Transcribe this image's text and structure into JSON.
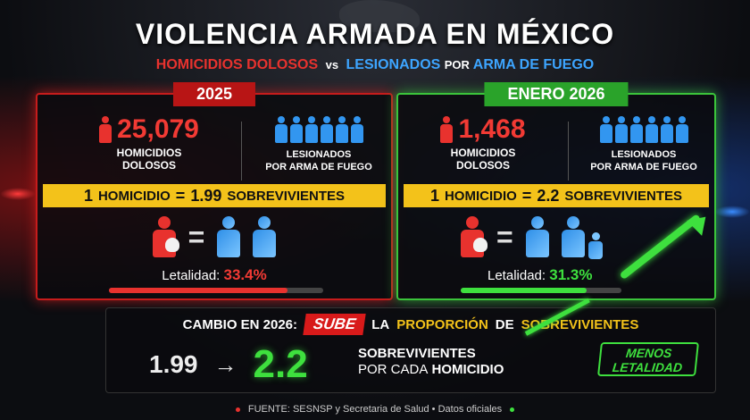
{
  "header": {
    "title": "VIOLENCIA ARMADA EN MÉXICO",
    "subtitle_red": "HOMICIDIOS DOLOSOS",
    "subtitle_vs": "vs",
    "subtitle_blue": "LESIONADOS",
    "subtitle_rest_1": "POR",
    "subtitle_rest_2": "ARMA DE FUEGO"
  },
  "panel_2025": {
    "tag": "2025",
    "homicidios_value": "25,079",
    "homicidios_label_1": "HOMICIDIOS",
    "homicidios_label_2": "DOLOSOS",
    "lesionados_label_1": "LESIONADOS",
    "lesionados_label_2": "POR ARMA DE FUEGO",
    "banner_one": "1",
    "banner_homicidio": "HOMICIDIO",
    "banner_eq": "=",
    "banner_value": "1.99",
    "banner_sobrevivientes": "SOBREVIVIENTES",
    "letalidad_label": "Letalidad:",
    "letalidad_value": "33.4%",
    "letalidad_fraction": 0.334
  },
  "panel_2026": {
    "tag": "ENERO 2026",
    "homicidios_value": "1,468",
    "homicidios_label_1": "HOMICIDIOS",
    "homicidios_label_2": "DOLOSOS",
    "lesionados_label_1": "LESIONADOS",
    "lesionados_label_2": "POR ARMA DE FUEGO",
    "banner_one": "1",
    "banner_homicidio": "HOMICIDIO",
    "banner_eq": "=",
    "banner_value": "2.2",
    "banner_sobrevivientes": "SOBREVIVIENTES",
    "letalidad_label": "Letalidad:",
    "letalidad_value": "31.3%",
    "letalidad_fraction": 0.313
  },
  "equation_sign": "=",
  "change": {
    "prefix": "CAMBIO EN 2026:",
    "badge": "SUBE",
    "text_1": "LA",
    "text_2": "PROPORCIÓN",
    "text_3": "DE",
    "text_4": "SOBREVIVIENTES",
    "old_value": "1.99",
    "arrow": "→",
    "new_value": "2.2",
    "per_line_1": "SOBREVIVIENTES",
    "per_line_2a": "POR CADA",
    "per_line_2b": "HOMICIDIO",
    "menos_1": "MENOS",
    "menos_2": "LETALIDAD"
  },
  "source": "FUENTE: SESNSP y Secretaria de Salud • Datos oficiales",
  "colors": {
    "red": "#e8322e",
    "blue": "#3296f0",
    "green": "#3ee03e",
    "yellow": "#f3c21a"
  }
}
